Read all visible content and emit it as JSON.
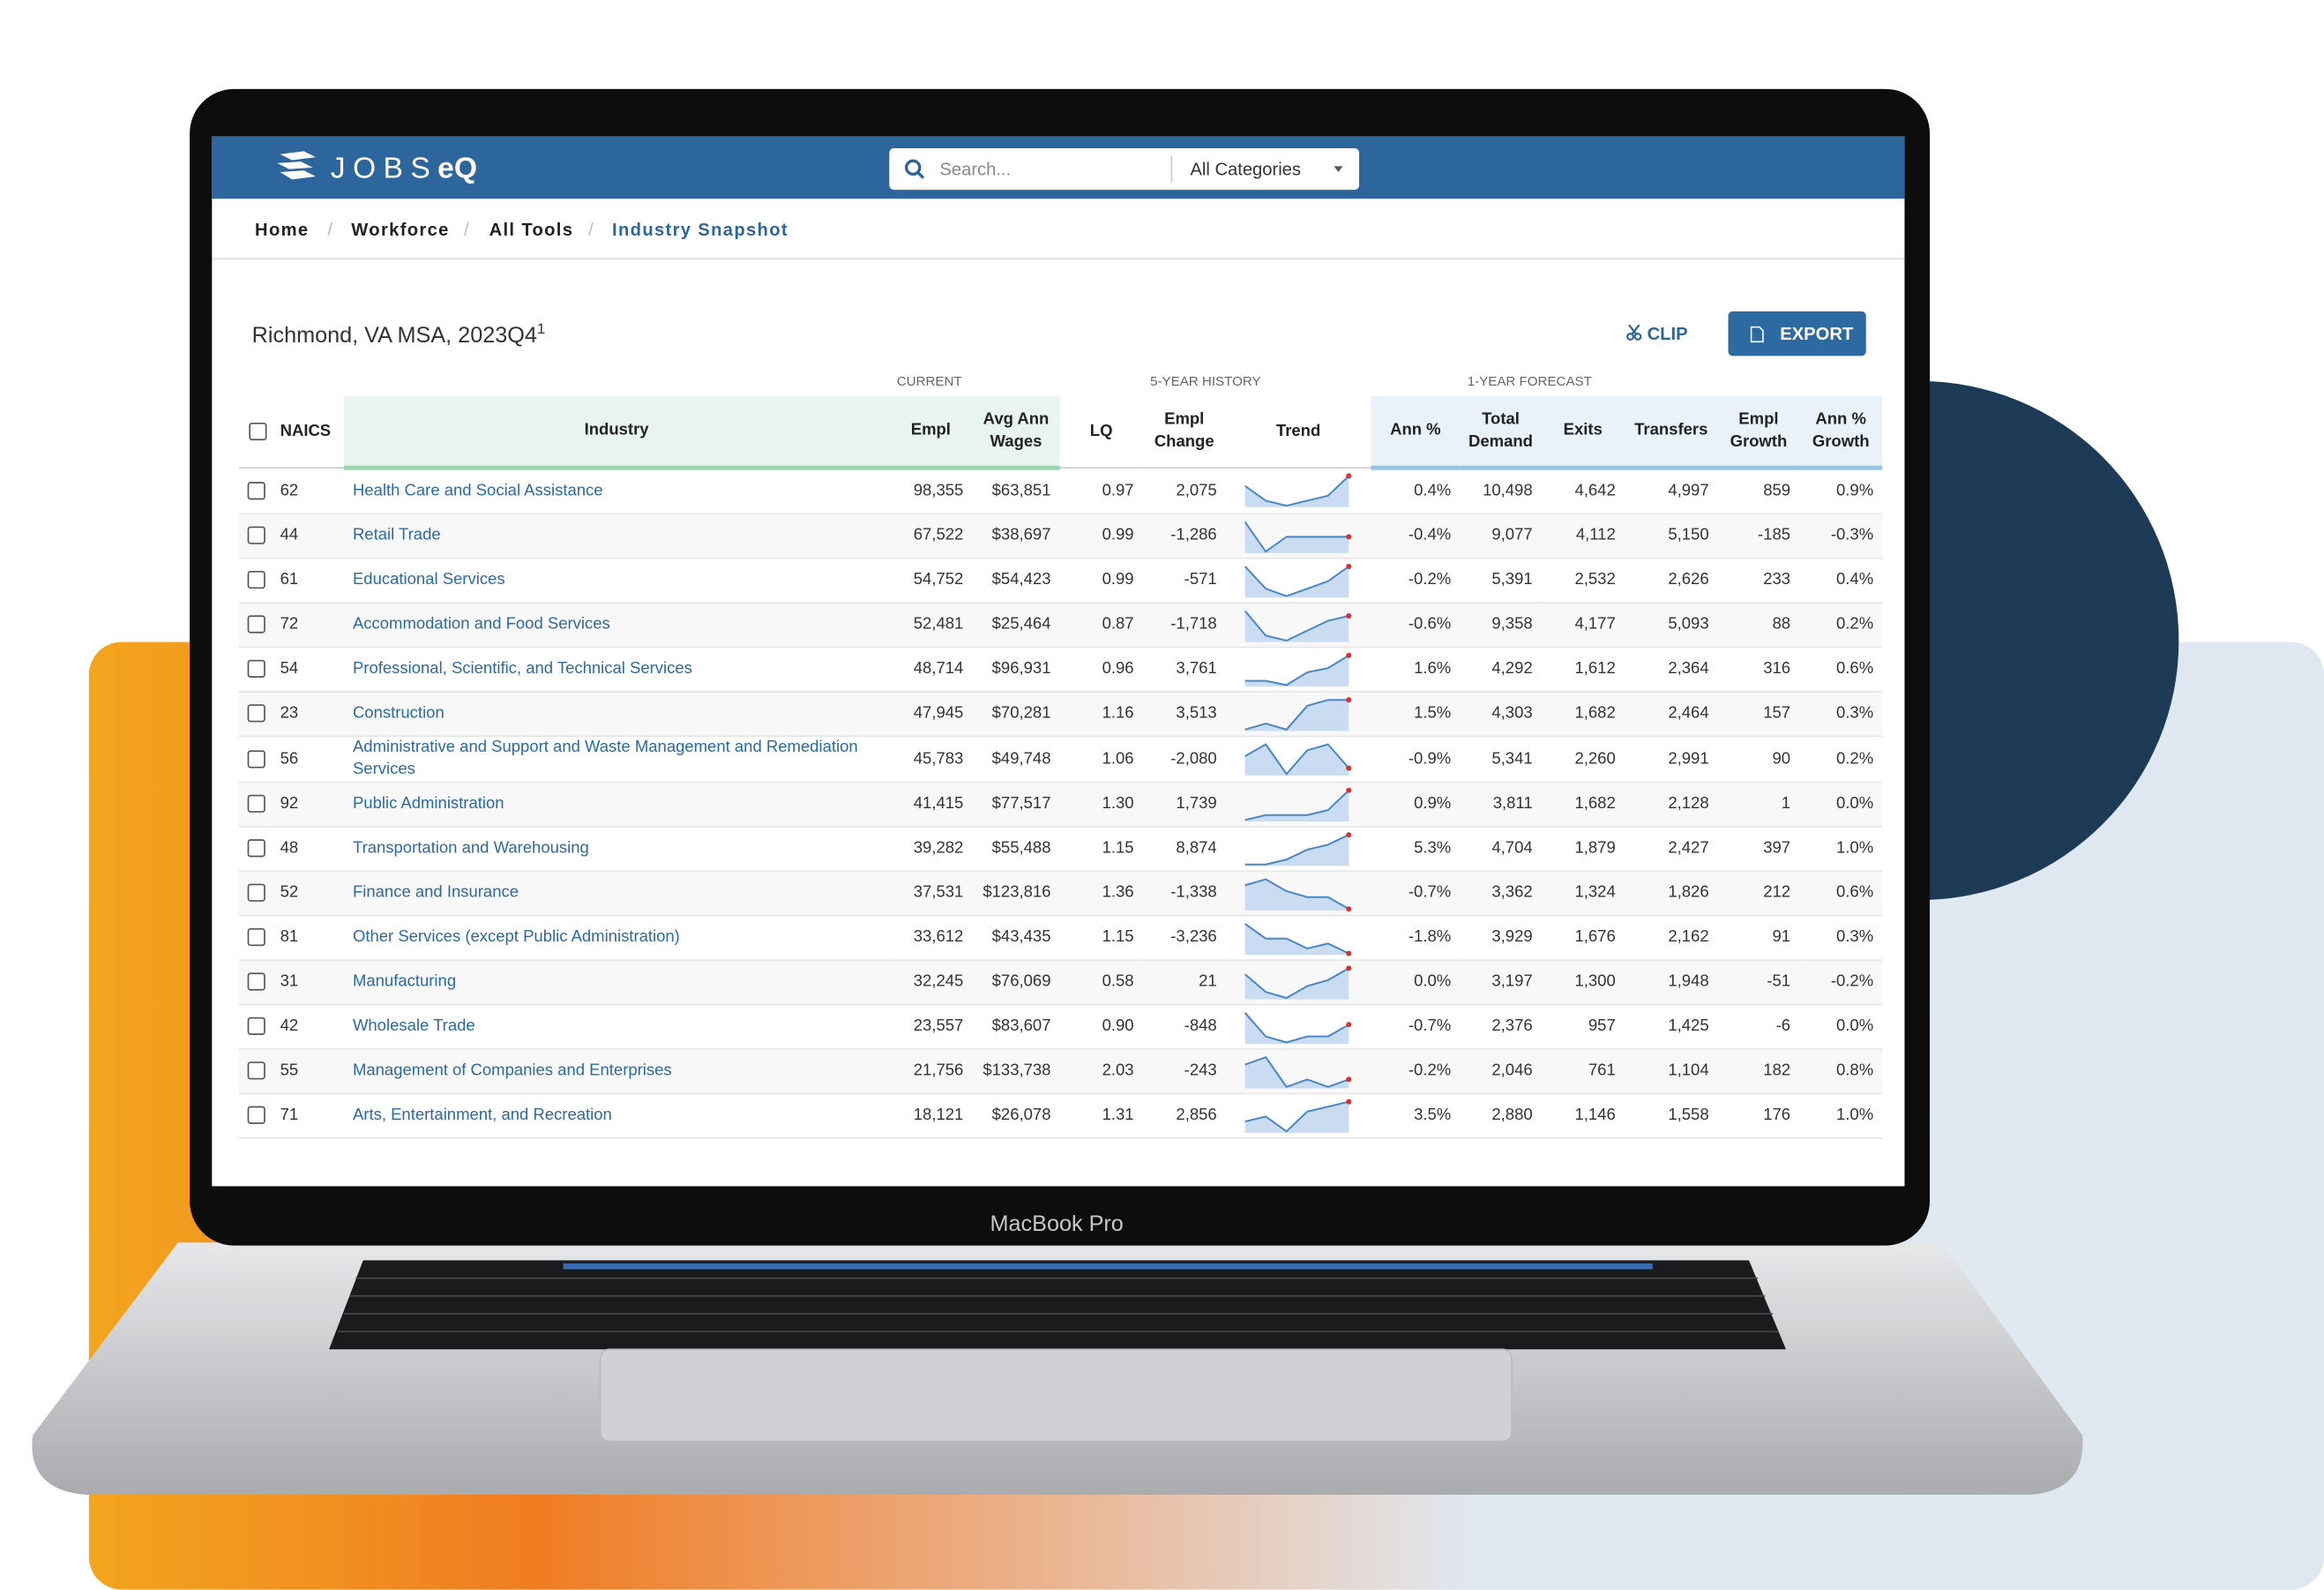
{
  "header": {
    "logo": {
      "light": "JOBS",
      "bold": "eQ"
    },
    "search_placeholder": "Search...",
    "category": "All Categories"
  },
  "breadcrumbs": [
    "Home",
    "Workforce",
    "All Tools",
    "Industry Snapshot"
  ],
  "title": "Richmond, VA MSA, 2023Q4",
  "title_note": "1",
  "actions": {
    "clip": "CLIP",
    "export": "EXPORT"
  },
  "table": {
    "groups": [
      "CURRENT",
      "5-YEAR HISTORY",
      "1-YEAR FORECAST"
    ],
    "columns": [
      "NAICS",
      "Industry",
      "Empl",
      "Avg Ann Wages",
      "LQ",
      "Empl Change",
      "Trend",
      "Ann %",
      "Total Demand",
      "Exits",
      "Transfers",
      "Empl Growth",
      "Ann % Growth"
    ],
    "rows": [
      [
        "62",
        "Health Care and Social Assistance",
        "98,355",
        "$63,851",
        "0.97",
        "2,075",
        [
          6,
          3,
          2,
          3,
          4,
          8
        ],
        "0.4%",
        "10,498",
        "4,642",
        "4,997",
        "859",
        "0.9%"
      ],
      [
        "44",
        "Retail Trade",
        "67,522",
        "$38,697",
        "0.99",
        "-1,286",
        [
          7,
          3,
          5,
          5,
          5,
          5
        ],
        "-0.4%",
        "9,077",
        "4,112",
        "5,150",
        "-185",
        "-0.3%"
      ],
      [
        "61",
        "Educational Services",
        "54,752",
        "$54,423",
        "0.99",
        "-571",
        [
          7,
          4,
          3,
          4,
          5,
          7
        ],
        "-0.2%",
        "5,391",
        "2,532",
        "2,626",
        "233",
        "0.4%"
      ],
      [
        "72",
        "Accommodation and Food Services",
        "52,481",
        "$25,464",
        "0.87",
        "-1,718",
        [
          8,
          3,
          2,
          4,
          6,
          7
        ],
        "-0.6%",
        "9,358",
        "4,177",
        "5,093",
        "88",
        "0.2%"
      ],
      [
        "54",
        "Professional, Scientific, and Technical Services",
        "48,714",
        "$96,931",
        "0.96",
        "3,761",
        [
          2,
          2,
          1,
          4,
          5,
          8
        ],
        "1.6%",
        "4,292",
        "1,612",
        "2,364",
        "316",
        "0.6%"
      ],
      [
        "23",
        "Construction",
        "47,945",
        "$70,281",
        "1.16",
        "3,513",
        [
          2,
          3,
          2,
          6,
          7,
          7
        ],
        "1.5%",
        "4,303",
        "1,682",
        "2,464",
        "157",
        "0.3%"
      ],
      [
        "56",
        "Administrative and Support and Waste Management and Remediation Services",
        "45,783",
        "$49,748",
        "1.06",
        "-2,080",
        [
          5,
          7,
          2,
          6,
          7,
          3
        ],
        "-0.9%",
        "5,341",
        "2,260",
        "2,991",
        "90",
        "0.2%"
      ],
      [
        "92",
        "Public Administration",
        "41,415",
        "$77,517",
        "1.30",
        "1,739",
        [
          3,
          4,
          4,
          4,
          5,
          9
        ],
        "0.9%",
        "3,811",
        "1,682",
        "2,128",
        "1",
        "0.0%"
      ],
      [
        "48",
        "Transportation and Warehousing",
        "39,282",
        "$55,488",
        "1.15",
        "8,874",
        [
          2,
          2,
          3,
          5,
          6,
          8
        ],
        "5.3%",
        "4,704",
        "1,879",
        "2,427",
        "397",
        "1.0%"
      ],
      [
        "52",
        "Finance and Insurance",
        "37,531",
        "$123,816",
        "1.36",
        "-1,338",
        [
          6,
          7,
          5,
          4,
          4,
          2
        ],
        "-0.7%",
        "3,362",
        "1,324",
        "1,826",
        "212",
        "0.6%"
      ],
      [
        "81",
        "Other Services (except Public Administration)",
        "33,612",
        "$43,435",
        "1.15",
        "-3,236",
        [
          8,
          5,
          5,
          3,
          4,
          2
        ],
        "-1.8%",
        "3,929",
        "1,676",
        "2,162",
        "91",
        "0.3%"
      ],
      [
        "31",
        "Manufacturing",
        "32,245",
        "$76,069",
        "0.58",
        "21",
        [
          6,
          3,
          2,
          4,
          5,
          7
        ],
        "0.0%",
        "3,197",
        "1,300",
        "1,948",
        "-51",
        "-0.2%"
      ],
      [
        "42",
        "Wholesale Trade",
        "23,557",
        "$83,607",
        "0.90",
        "-848",
        [
          7,
          3,
          2,
          3,
          3,
          5
        ],
        "-0.7%",
        "2,376",
        "957",
        "1,425",
        "-6",
        "0.0%"
      ],
      [
        "55",
        "Management of Companies and Enterprises",
        "21,756",
        "$133,738",
        "2.03",
        "-243",
        [
          6,
          7,
          3,
          4,
          3,
          4
        ],
        "-0.2%",
        "2,046",
        "761",
        "1,104",
        "182",
        "0.8%"
      ],
      [
        "71",
        "Arts, Entertainment, and Recreation",
        "18,121",
        "$26,078",
        "1.31",
        "2,856",
        [
          3,
          4,
          1,
          5,
          6,
          7
        ],
        "3.5%",
        "2,880",
        "1,146",
        "1,558",
        "176",
        "1.0%"
      ]
    ]
  },
  "device_label": "MacBook Pro"
}
